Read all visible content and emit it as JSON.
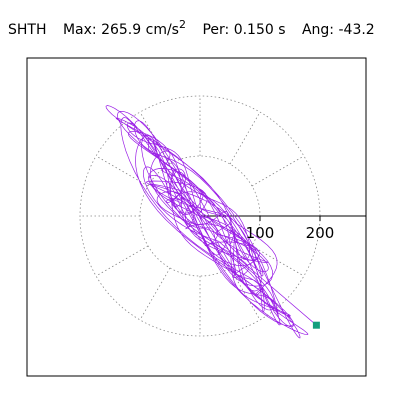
{
  "header": {
    "station": "SHTH",
    "max_label": "Max:",
    "max_value": "265.9",
    "max_unit": "cm/s",
    "max_unit_exp": "2",
    "per_label": "Per:",
    "per_value": "0.150 s",
    "ang_label": "Ang:",
    "ang_value": "-43.2"
  },
  "chart_data": {
    "type": "line",
    "projection": "polar-particle-motion",
    "radial_rings": [
      100,
      200
    ],
    "radial_tick_labels": [
      "100",
      "200"
    ],
    "spoke_angles_deg": [
      0,
      30,
      60,
      90,
      120,
      150,
      180,
      210,
      240,
      270,
      300,
      330
    ],
    "grid": "dotted",
    "major_axis_angle_deg": -43.2,
    "peak_value": 265.9,
    "end_point": {
      "x": 194,
      "y": -182
    },
    "series_color": "#9a1ee6",
    "marker_color": "#149e7e",
    "axis_color": "#000000",
    "grid_color": "#888888"
  }
}
